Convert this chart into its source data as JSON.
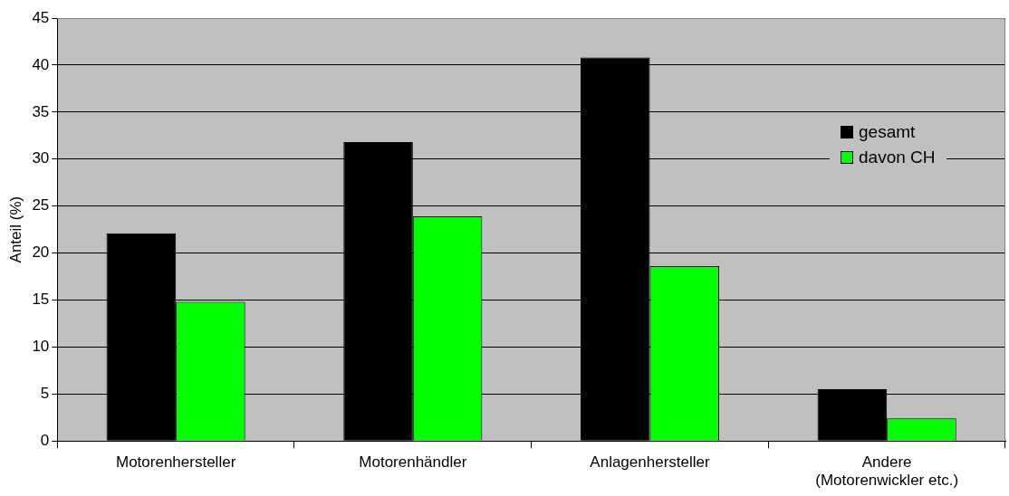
{
  "chart_data": {
    "type": "bar",
    "ylabel": "Anteil (%)",
    "categories": [
      "Motorenhersteller",
      "Motorenhändler",
      "Anlagenhersteller",
      "Andere (Motorenwickler etc.)"
    ],
    "series": [
      {
        "name": "gesamt",
        "color": "#000000",
        "values": [
          22.1,
          31.8,
          40.8,
          5.5
        ]
      },
      {
        "name": "davon CH",
        "color": "#00ff00",
        "values": [
          14.8,
          23.9,
          18.6,
          2.4
        ]
      }
    ],
    "ylim": [
      0,
      45
    ],
    "yticks": [
      0,
      5,
      10,
      15,
      20,
      25,
      30,
      35,
      40,
      45
    ],
    "grid": "y",
    "legend": "top right"
  }
}
